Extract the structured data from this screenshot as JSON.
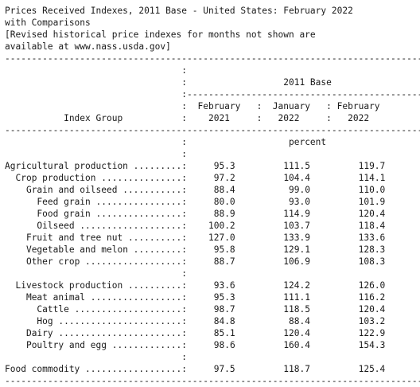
{
  "document": {
    "title_lines": [
      "Prices Received Indexes, 2011 Base - United States: February 2022",
      "with Comparisons",
      "[Revised historical price indexes for months not shown are",
      "available at www.nass.usda.gov]"
    ],
    "base_label": "2011 Base",
    "stub_header": "Index Group",
    "columns": [
      {
        "month": "February",
        "year": "2021"
      },
      {
        "month": "January",
        "year": "2022"
      },
      {
        "month": "February",
        "year": "2022"
      }
    ],
    "unit": "percent",
    "rows": [
      {
        "label": "Agricultural production",
        "indent": 0,
        "values": [
          "95.3",
          "111.5",
          "119.7"
        ]
      },
      {
        "label": "Crop production",
        "indent": 2,
        "values": [
          "97.2",
          "104.4",
          "114.1"
        ]
      },
      {
        "label": "Grain and oilseed",
        "indent": 4,
        "values": [
          "88.4",
          "99.0",
          "110.0"
        ]
      },
      {
        "label": "Feed grain",
        "indent": 6,
        "values": [
          "80.0",
          "93.0",
          "101.9"
        ]
      },
      {
        "label": "Food grain",
        "indent": 6,
        "values": [
          "88.9",
          "114.9",
          "120.4"
        ]
      },
      {
        "label": "Oilseed",
        "indent": 6,
        "values": [
          "100.2",
          "103.7",
          "118.4"
        ]
      },
      {
        "label": "Fruit and tree nut",
        "indent": 4,
        "values": [
          "127.0",
          "133.9",
          "133.6"
        ]
      },
      {
        "label": "Vegetable and melon",
        "indent": 4,
        "values": [
          "95.8",
          "129.1",
          "128.3"
        ]
      },
      {
        "label": "Other crop",
        "indent": 4,
        "values": [
          "88.7",
          "106.9",
          "108.3"
        ]
      },
      {
        "label": "",
        "indent": 0,
        "values": []
      },
      {
        "label": "Livestock production",
        "indent": 2,
        "values": [
          "93.6",
          "124.2",
          "126.0"
        ]
      },
      {
        "label": "Meat animal",
        "indent": 4,
        "values": [
          "95.3",
          "111.1",
          "116.2"
        ]
      },
      {
        "label": "Cattle",
        "indent": 6,
        "values": [
          "98.7",
          "118.5",
          "120.4"
        ]
      },
      {
        "label": "Hog",
        "indent": 6,
        "values": [
          "84.8",
          "88.4",
          "103.2"
        ]
      },
      {
        "label": "Dairy",
        "indent": 4,
        "values": [
          "85.1",
          "120.4",
          "122.9"
        ]
      },
      {
        "label": "Poultry and egg",
        "indent": 4,
        "values": [
          "98.6",
          "160.4",
          "154.3"
        ]
      },
      {
        "label": "",
        "indent": 0,
        "values": []
      },
      {
        "label": "Food commodity",
        "indent": 0,
        "values": [
          "97.5",
          "118.7",
          "125.4"
        ]
      }
    ]
  }
}
